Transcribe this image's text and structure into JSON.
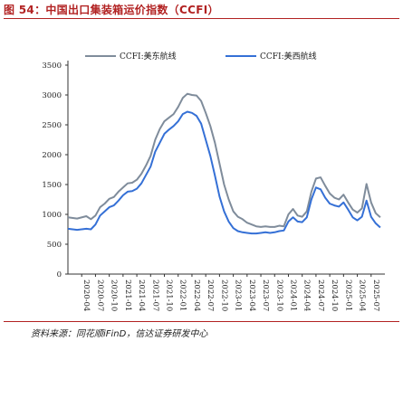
{
  "figure": {
    "title": "图 54：中国出口集装箱运价指数（CCFI）",
    "source": "资料来源：同花顺iFinD，信达证券研发中心"
  },
  "chart_data": {
    "type": "line",
    "ylim": [
      0,
      3500
    ],
    "yticks": [
      0,
      500,
      1000,
      1500,
      2000,
      2500,
      3000,
      3500
    ],
    "xticks": [
      "2020-04",
      "2020-07",
      "2020-10",
      "2021-01",
      "2021-04",
      "2021-07",
      "2021-10",
      "2022-01",
      "2022-04",
      "2022-07",
      "2022-10",
      "2023-01",
      "2023-04",
      "2023-07",
      "2023-10",
      "2024-01",
      "2024-04",
      "2024-07",
      "2024-10",
      "2025-01",
      "2025-04",
      "2025-07"
    ],
    "x_range": [
      "2020-01",
      "2025-10"
    ],
    "grid": false,
    "legend_position": "top",
    "series": [
      {
        "name": "CCFI:美东航线",
        "color": "#7f8c9b",
        "points": [
          [
            "2020-01",
            950
          ],
          [
            "2020-03",
            930
          ],
          [
            "2020-05",
            970
          ],
          [
            "2020-06",
            920
          ],
          [
            "2020-07",
            980
          ],
          [
            "2020-08",
            1120
          ],
          [
            "2020-09",
            1180
          ],
          [
            "2020-10",
            1260
          ],
          [
            "2020-11",
            1290
          ],
          [
            "2020-12",
            1380
          ],
          [
            "2021-01",
            1450
          ],
          [
            "2021-02",
            1520
          ],
          [
            "2021-03",
            1530
          ],
          [
            "2021-04",
            1580
          ],
          [
            "2021-05",
            1680
          ],
          [
            "2021-06",
            1820
          ],
          [
            "2021-07",
            1980
          ],
          [
            "2021-08",
            2250
          ],
          [
            "2021-09",
            2430
          ],
          [
            "2021-10",
            2560
          ],
          [
            "2021-11",
            2620
          ],
          [
            "2021-12",
            2680
          ],
          [
            "2022-01",
            2800
          ],
          [
            "2022-02",
            2950
          ],
          [
            "2022-03",
            3020
          ],
          [
            "2022-04",
            3000
          ],
          [
            "2022-05",
            2990
          ],
          [
            "2022-06",
            2900
          ],
          [
            "2022-07",
            2700
          ],
          [
            "2022-08",
            2480
          ],
          [
            "2022-09",
            2200
          ],
          [
            "2022-10",
            1850
          ],
          [
            "2022-11",
            1500
          ],
          [
            "2022-12",
            1250
          ],
          [
            "2023-01",
            1050
          ],
          [
            "2023-02",
            960
          ],
          [
            "2023-03",
            920
          ],
          [
            "2023-04",
            860
          ],
          [
            "2023-05",
            830
          ],
          [
            "2023-06",
            800
          ],
          [
            "2023-07",
            790
          ],
          [
            "2023-08",
            800
          ],
          [
            "2023-09",
            790
          ],
          [
            "2023-10",
            790
          ],
          [
            "2023-11",
            810
          ],
          [
            "2023-12",
            800
          ],
          [
            "2024-01",
            1000
          ],
          [
            "2024-02",
            1090
          ],
          [
            "2024-03",
            980
          ],
          [
            "2024-04",
            960
          ],
          [
            "2024-05",
            1050
          ],
          [
            "2024-06",
            1380
          ],
          [
            "2024-07",
            1600
          ],
          [
            "2024-08",
            1620
          ],
          [
            "2024-09",
            1480
          ],
          [
            "2024-10",
            1350
          ],
          [
            "2024-11",
            1280
          ],
          [
            "2024-12",
            1250
          ],
          [
            "2025-01",
            1330
          ],
          [
            "2025-02",
            1200
          ],
          [
            "2025-03",
            1080
          ],
          [
            "2025-04",
            1030
          ],
          [
            "2025-05",
            1100
          ],
          [
            "2025-06",
            1510
          ],
          [
            "2025-07",
            1200
          ],
          [
            "2025-08",
            1020
          ],
          [
            "2025-09",
            950
          ]
        ]
      },
      {
        "name": "CCFI:美西航线",
        "color": "#3570d6",
        "points": [
          [
            "2020-01",
            760
          ],
          [
            "2020-03",
            740
          ],
          [
            "2020-05",
            760
          ],
          [
            "2020-06",
            750
          ],
          [
            "2020-07",
            830
          ],
          [
            "2020-08",
            980
          ],
          [
            "2020-09",
            1050
          ],
          [
            "2020-10",
            1120
          ],
          [
            "2020-11",
            1150
          ],
          [
            "2020-12",
            1230
          ],
          [
            "2021-01",
            1320
          ],
          [
            "2021-02",
            1380
          ],
          [
            "2021-03",
            1390
          ],
          [
            "2021-04",
            1430
          ],
          [
            "2021-05",
            1520
          ],
          [
            "2021-06",
            1660
          ],
          [
            "2021-07",
            1800
          ],
          [
            "2021-08",
            2050
          ],
          [
            "2021-09",
            2200
          ],
          [
            "2021-10",
            2350
          ],
          [
            "2021-11",
            2420
          ],
          [
            "2021-12",
            2480
          ],
          [
            "2022-01",
            2560
          ],
          [
            "2022-02",
            2680
          ],
          [
            "2022-03",
            2720
          ],
          [
            "2022-04",
            2700
          ],
          [
            "2022-05",
            2650
          ],
          [
            "2022-06",
            2520
          ],
          [
            "2022-07",
            2250
          ],
          [
            "2022-08",
            1980
          ],
          [
            "2022-09",
            1650
          ],
          [
            "2022-10",
            1300
          ],
          [
            "2022-11",
            1050
          ],
          [
            "2022-12",
            880
          ],
          [
            "2023-01",
            770
          ],
          [
            "2023-02",
            720
          ],
          [
            "2023-03",
            700
          ],
          [
            "2023-04",
            690
          ],
          [
            "2023-05",
            680
          ],
          [
            "2023-06",
            680
          ],
          [
            "2023-07",
            690
          ],
          [
            "2023-08",
            700
          ],
          [
            "2023-09",
            690
          ],
          [
            "2023-10",
            700
          ],
          [
            "2023-11",
            720
          ],
          [
            "2023-12",
            730
          ],
          [
            "2024-01",
            880
          ],
          [
            "2024-02",
            950
          ],
          [
            "2024-03",
            880
          ],
          [
            "2024-04",
            870
          ],
          [
            "2024-05",
            950
          ],
          [
            "2024-06",
            1250
          ],
          [
            "2024-07",
            1450
          ],
          [
            "2024-08",
            1420
          ],
          [
            "2024-09",
            1280
          ],
          [
            "2024-10",
            1180
          ],
          [
            "2024-11",
            1150
          ],
          [
            "2024-12",
            1130
          ],
          [
            "2025-01",
            1200
          ],
          [
            "2025-02",
            1080
          ],
          [
            "2025-03",
            950
          ],
          [
            "2025-04",
            900
          ],
          [
            "2025-05",
            960
          ],
          [
            "2025-06",
            1230
          ],
          [
            "2025-07",
            960
          ],
          [
            "2025-08",
            850
          ],
          [
            "2025-09",
            780
          ]
        ]
      }
    ]
  }
}
